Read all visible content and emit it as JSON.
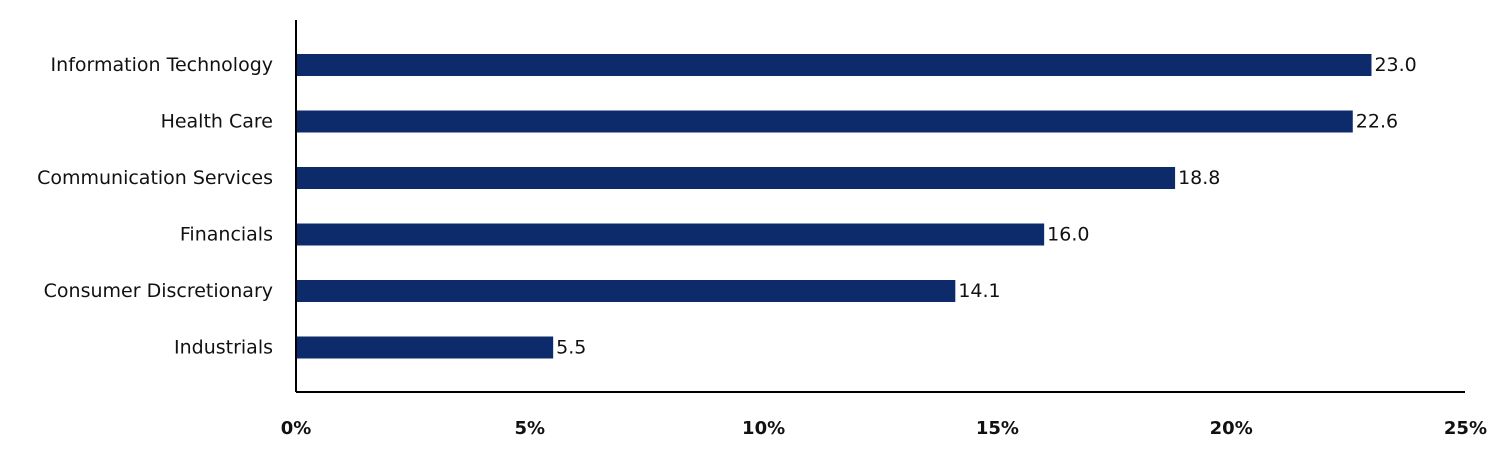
{
  "chart_data": {
    "type": "bar",
    "orientation": "horizontal",
    "categories": [
      "Information Technology",
      "Health Care",
      "Communication Services",
      "Financials",
      "Consumer Discretionary",
      "Industrials"
    ],
    "values": [
      23.0,
      22.6,
      18.8,
      16.0,
      14.1,
      5.5
    ],
    "value_labels": [
      "23.0",
      "22.6",
      "18.8",
      "16.0",
      "14.1",
      "5.5"
    ],
    "xlim": [
      0,
      25
    ],
    "x_ticks": [
      0,
      5,
      10,
      15,
      20,
      25
    ],
    "x_tick_labels": [
      "0%",
      "5%",
      "10%",
      "15%",
      "20%",
      "25%"
    ],
    "title": "",
    "xlabel": "",
    "ylabel": "",
    "grid": false,
    "bar_color": "#0d2a6b"
  }
}
